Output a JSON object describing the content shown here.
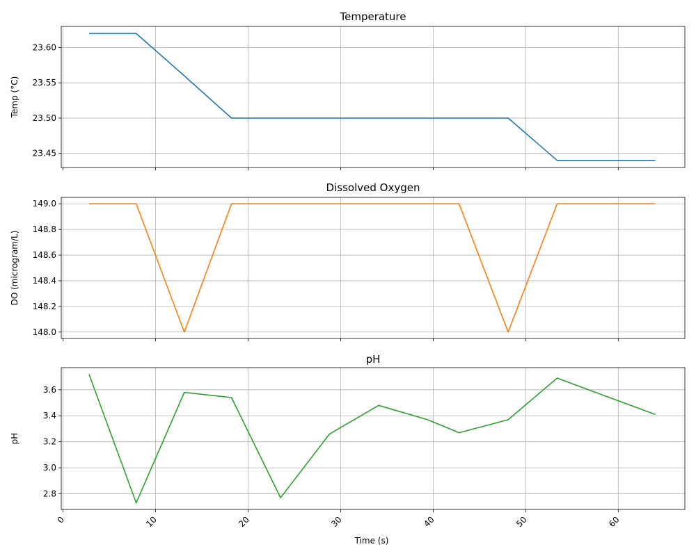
{
  "figure": {
    "x_tick_labels": [
      "0",
      "10",
      "20",
      "30",
      "40",
      "50",
      "60"
    ],
    "x_axis_label": "Time (s)"
  },
  "chart_data": [
    {
      "type": "line",
      "title": "Temperature",
      "xlabel": "",
      "ylabel": "Temp (°C)",
      "xlim": [
        -0.2,
        67.2
      ],
      "ylim": [
        23.43,
        23.63
      ],
      "yticks": [
        23.45,
        23.5,
        23.55,
        23.6
      ],
      "ytick_labels": [
        "23.45",
        "23.50",
        "23.55",
        "23.60"
      ],
      "xticks": [
        0,
        10,
        20,
        30,
        40,
        50,
        60
      ],
      "grid": true,
      "color": "#1f77b4",
      "x": [
        2.8,
        7.9,
        13.1,
        18.2,
        23.5,
        28.8,
        34.1,
        39.4,
        42.8,
        48.1,
        53.4,
        58.7,
        64.0
      ],
      "y": [
        23.62,
        23.62,
        23.56,
        23.5,
        23.5,
        23.5,
        23.5,
        23.5,
        23.5,
        23.5,
        23.44,
        23.44,
        23.44
      ]
    },
    {
      "type": "line",
      "title": "Dissolved Oxygen",
      "xlabel": "",
      "ylabel": "DO (microgram/L)",
      "xlim": [
        -0.2,
        67.2
      ],
      "ylim": [
        147.95,
        149.05
      ],
      "yticks": [
        148.0,
        148.2,
        148.4,
        148.6,
        148.8,
        149.0
      ],
      "ytick_labels": [
        "148.0",
        "148.2",
        "148.4",
        "148.6",
        "148.8",
        "149.0"
      ],
      "xticks": [
        0,
        10,
        20,
        30,
        40,
        50,
        60
      ],
      "grid": true,
      "color": "#ff7f0e",
      "x": [
        2.8,
        7.9,
        13.1,
        18.2,
        23.5,
        28.8,
        34.1,
        39.4,
        42.8,
        48.1,
        53.4,
        58.7,
        64.0
      ],
      "y": [
        149.0,
        149.0,
        148.0,
        149.0,
        149.0,
        149.0,
        149.0,
        149.0,
        149.0,
        148.0,
        149.0,
        149.0,
        149.0
      ]
    },
    {
      "type": "line",
      "title": "pH",
      "xlabel": "Time (s)",
      "ylabel": "pH",
      "xlim": [
        -0.2,
        67.2
      ],
      "ylim": [
        2.68,
        3.77
      ],
      "yticks": [
        2.8,
        3.0,
        3.2,
        3.4,
        3.6
      ],
      "ytick_labels": [
        "2.8",
        "3.0",
        "3.2",
        "3.4",
        "3.6"
      ],
      "xticks": [
        0,
        10,
        20,
        30,
        40,
        50,
        60
      ],
      "grid": true,
      "color": "#2ca02c",
      "x": [
        2.8,
        7.9,
        13.1,
        18.2,
        23.5,
        28.8,
        34.1,
        39.4,
        42.8,
        48.1,
        53.4,
        58.7,
        64.0
      ],
      "y": [
        3.72,
        2.73,
        3.58,
        3.54,
        2.77,
        3.26,
        3.48,
        3.37,
        3.27,
        3.37,
        3.69,
        3.55,
        3.41
      ]
    }
  ]
}
